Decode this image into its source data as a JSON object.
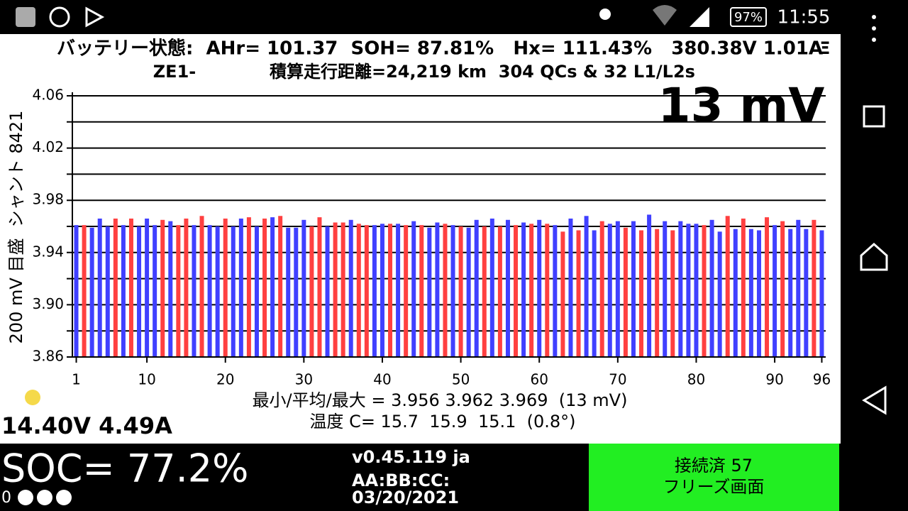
{
  "status_bar": {
    "battery": "97%",
    "time": "11:55"
  },
  "header": {
    "line1": "バッテリー状態:  AHr= 101.37  SOH= 87.81%   Hx= 111.43%   380.38V 1.01A",
    "menu": "Ξ",
    "model": "ZE1-",
    "line2": "積算走行距離=24,219 km  304 QCs & 32 L1/L2s"
  },
  "chart_data": {
    "type": "bar",
    "annotation": "13 mV",
    "y_label": "200 mV 目盛  シャント 8421",
    "x": [
      1,
      2,
      3,
      4,
      5,
      6,
      7,
      8,
      9,
      10,
      11,
      12,
      13,
      14,
      15,
      16,
      17,
      18,
      19,
      20,
      21,
      22,
      23,
      24,
      25,
      26,
      27,
      28,
      29,
      30,
      31,
      32,
      33,
      34,
      35,
      36,
      37,
      38,
      39,
      40,
      41,
      42,
      43,
      44,
      45,
      46,
      47,
      48,
      49,
      50,
      51,
      52,
      53,
      54,
      55,
      56,
      57,
      58,
      59,
      60,
      61,
      62,
      63,
      64,
      65,
      66,
      67,
      68,
      69,
      70,
      71,
      72,
      73,
      74,
      75,
      76,
      77,
      78,
      79,
      80,
      81,
      82,
      83,
      84,
      85,
      86,
      87,
      88,
      89,
      90,
      91,
      92,
      93,
      94,
      95,
      96
    ],
    "values": [
      3.961,
      3.961,
      3.959,
      3.966,
      3.96,
      3.966,
      3.961,
      3.966,
      3.96,
      3.966,
      3.961,
      3.965,
      3.964,
      3.961,
      3.966,
      3.961,
      3.968,
      3.961,
      3.96,
      3.966,
      3.96,
      3.966,
      3.967,
      3.96,
      3.966,
      3.967,
      3.968,
      3.959,
      3.959,
      3.965,
      3.96,
      3.967,
      3.96,
      3.963,
      3.963,
      3.965,
      3.962,
      3.961,
      3.961,
      3.962,
      3.962,
      3.962,
      3.961,
      3.964,
      3.961,
      3.959,
      3.963,
      3.962,
      3.961,
      3.96,
      3.959,
      3.965,
      3.96,
      3.966,
      3.96,
      3.965,
      3.961,
      3.963,
      3.962,
      3.965,
      3.962,
      3.961,
      3.956,
      3.966,
      3.957,
      3.968,
      3.957,
      3.964,
      3.962,
      3.964,
      3.959,
      3.964,
      3.957,
      3.969,
      3.958,
      3.964,
      3.957,
      3.964,
      3.962,
      3.962,
      3.961,
      3.965,
      3.956,
      3.968,
      3.958,
      3.966,
      3.958,
      3.957,
      3.967,
      3.961,
      3.964,
      3.958,
      3.965,
      3.958,
      3.965,
      3.957
    ],
    "colors": [
      "#4040ff",
      "#ff4040",
      "#4040ff",
      "#4040ff",
      "#4040ff",
      "#ff4040",
      "#4040ff",
      "#ff4040",
      "#4040ff",
      "#4040ff",
      "#4040ff",
      "#ff4040",
      "#4040ff",
      "#ff4040",
      "#ff4040",
      "#4040ff",
      "#ff4040",
      "#4040ff",
      "#4040ff",
      "#ff4040",
      "#4040ff",
      "#4040ff",
      "#ff4040",
      "#4040ff",
      "#ff4040",
      "#4040ff",
      "#ff4040",
      "#4040ff",
      "#4040ff",
      "#4040ff",
      "#ff4040",
      "#ff4040",
      "#4040ff",
      "#ff4040",
      "#ff4040",
      "#4040ff",
      "#ff4040",
      "#ff4040",
      "#4040ff",
      "#4040ff",
      "#ff4040",
      "#4040ff",
      "#ff4040",
      "#4040ff",
      "#ff4040",
      "#4040ff",
      "#4040ff",
      "#ff4040",
      "#4040ff",
      "#ff4040",
      "#4040ff",
      "#4040ff",
      "#ff4040",
      "#4040ff",
      "#ff4040",
      "#4040ff",
      "#ff4040",
      "#4040ff",
      "#ff4040",
      "#4040ff",
      "#ff4040",
      "#4040ff",
      "#ff4040",
      "#4040ff",
      "#ff4040",
      "#4040ff",
      "#4040ff",
      "#ff4040",
      "#4040ff",
      "#4040ff",
      "#ff4040",
      "#4040ff",
      "#ff4040",
      "#4040ff",
      "#ff4040",
      "#4040ff",
      "#ff4040",
      "#4040ff",
      "#4040ff",
      "#4040ff",
      "#ff4040",
      "#4040ff",
      "#4040ff",
      "#ff4040",
      "#4040ff",
      "#ff4040",
      "#4040ff",
      "#4040ff",
      "#ff4040",
      "#4040ff",
      "#ff4040",
      "#4040ff",
      "#4040ff",
      "#4040ff",
      "#ff4040",
      "#4040ff"
    ],
    "xlim": [
      0.5,
      96.5
    ],
    "xticks": [
      1,
      10,
      20,
      30,
      40,
      50,
      60,
      70,
      80,
      90,
      96
    ],
    "ylim": [
      3.86,
      4.06
    ],
    "yticks": [
      {
        "value": 3.86,
        "label": "3.86"
      },
      {
        "value": 3.9,
        "label": "3.90"
      },
      {
        "value": 3.94,
        "label": "3.94"
      },
      {
        "value": 3.98,
        "label": "3.98"
      },
      {
        "value": 4.02,
        "label": "4.02"
      },
      {
        "value": 4.06,
        "label": "4.06"
      }
    ],
    "grid_yticks": [
      3.86,
      3.88,
      3.9,
      3.92,
      3.94,
      3.96,
      3.98,
      4,
      4.02,
      4.04,
      4.06
    ],
    "grid": true
  },
  "stats": {
    "minmax": "最小/平均/最大 = 3.956 3.962 3.969  (13 mV)",
    "temp": "温度 C= 15.7  15.9  15.1  (0.8°)",
    "aux": "14.40V 4.49A"
  },
  "footer": {
    "soc": "SOC= 77.2%",
    "counter": "0",
    "version": "v0.45.119 ja",
    "mac": "AA:BB:CC:",
    "date": "03/20/2021",
    "status": "接続済 57",
    "freeze": "フリーズ画面"
  }
}
